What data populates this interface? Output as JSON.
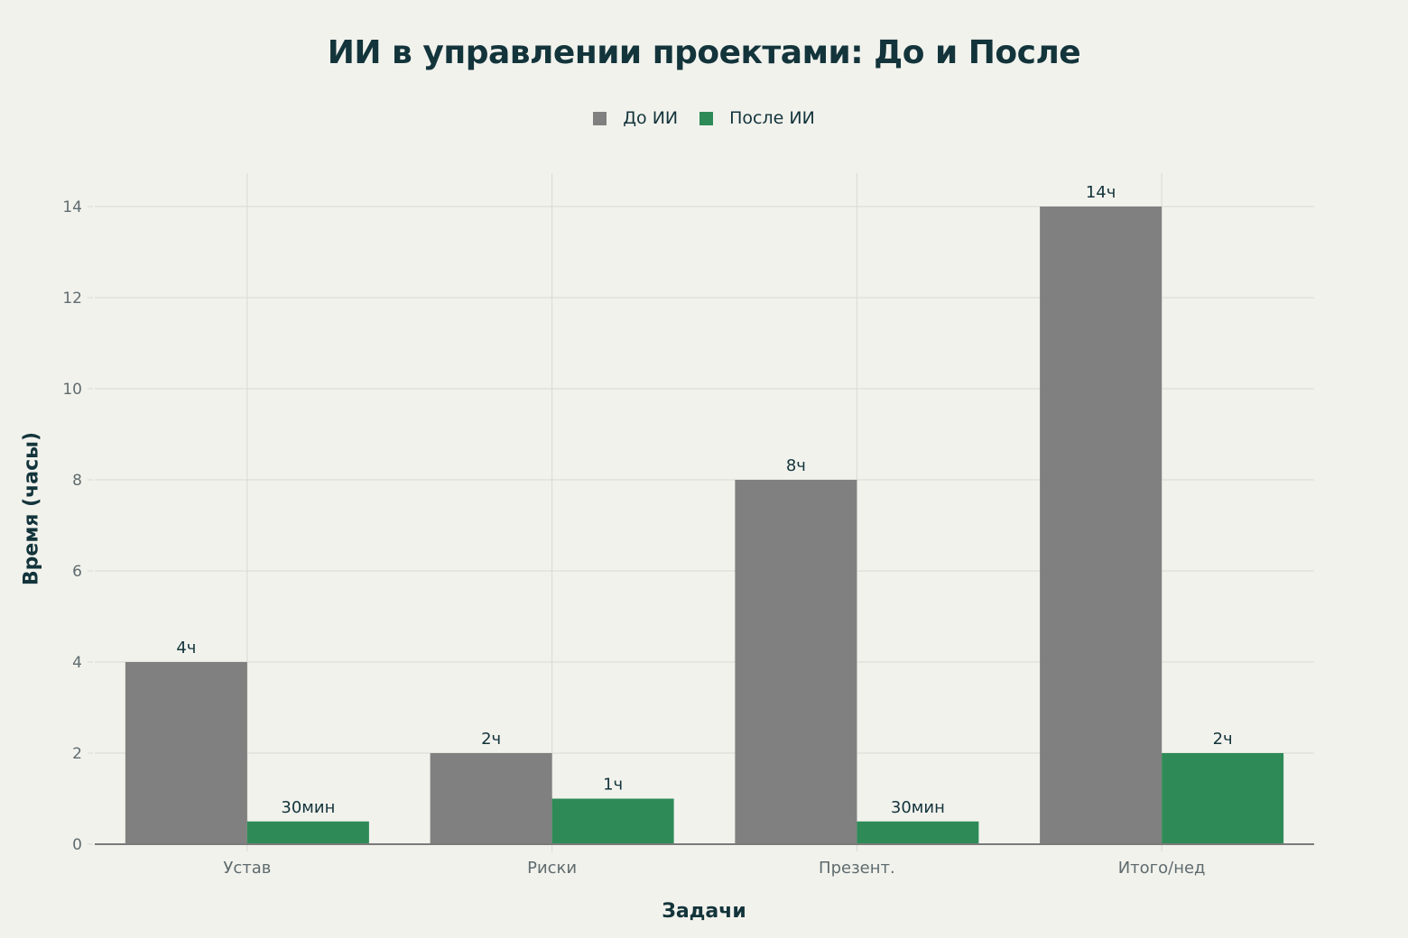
{
  "chart_data": {
    "type": "bar",
    "title": "ИИ в управлении проектами: До и После",
    "xlabel": "Задачи",
    "ylabel": "Время (часы)",
    "categories": [
      "Устав",
      "Риски",
      "Презент.",
      "Итого/нед"
    ],
    "series": [
      {
        "name": "До ИИ",
        "color": "#808080",
        "values": [
          4,
          2,
          8,
          14
        ],
        "labels": [
          "4ч",
          "2ч",
          "8ч",
          "14ч"
        ]
      },
      {
        "name": "После ИИ",
        "color": "#2e8b57",
        "values": [
          0.5,
          1,
          0.5,
          2
        ],
        "labels": [
          "30мин",
          "1ч",
          "30мин",
          "2ч"
        ]
      }
    ],
    "ylim": [
      0,
      14.7
    ],
    "yticks": [
      0,
      2,
      4,
      6,
      8,
      10,
      12,
      14
    ],
    "grid": true,
    "legend_position": "top-center"
  },
  "colors": {
    "background": "#f2f2ed",
    "text": "#13343b",
    "grid": "#d9d9d4",
    "axis": "#7a7a7a",
    "tick_text": "#5f6b6e"
  }
}
